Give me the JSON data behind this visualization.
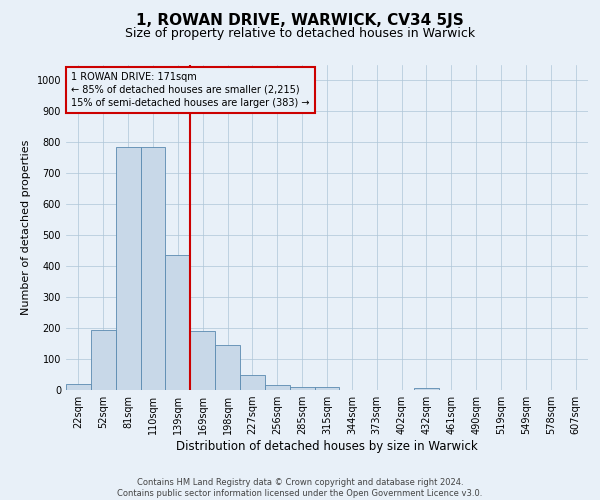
{
  "title": "1, ROWAN DRIVE, WARWICK, CV34 5JS",
  "subtitle": "Size of property relative to detached houses in Warwick",
  "xlabel": "Distribution of detached houses by size in Warwick",
  "ylabel": "Number of detached properties",
  "footer_line1": "Contains HM Land Registry data © Crown copyright and database right 2024.",
  "footer_line2": "Contains public sector information licensed under the Open Government Licence v3.0.",
  "categories": [
    "22sqm",
    "52sqm",
    "81sqm",
    "110sqm",
    "139sqm",
    "169sqm",
    "198sqm",
    "227sqm",
    "256sqm",
    "285sqm",
    "315sqm",
    "344sqm",
    "373sqm",
    "402sqm",
    "432sqm",
    "461sqm",
    "490sqm",
    "519sqm",
    "549sqm",
    "578sqm",
    "607sqm"
  ],
  "bar_heights": [
    20,
    195,
    785,
    785,
    435,
    190,
    145,
    50,
    15,
    10,
    10,
    0,
    0,
    0,
    8,
    0,
    0,
    0,
    0,
    0,
    0
  ],
  "bar_color": "#c8d8e8",
  "bar_edge_color": "#5a8ab0",
  "vline_color": "#cc0000",
  "annotation_box_text": "1 ROWAN DRIVE: 171sqm\n← 85% of detached houses are smaller (2,215)\n15% of semi-detached houses are larger (383) →",
  "annotation_box_color": "#cc0000",
  "ylim": [
    0,
    1050
  ],
  "yticks": [
    0,
    100,
    200,
    300,
    400,
    500,
    600,
    700,
    800,
    900,
    1000
  ],
  "grid_color": "#aec6d8",
  "bg_color": "#e8f0f8",
  "title_fontsize": 11,
  "subtitle_fontsize": 9,
  "ylabel_fontsize": 8,
  "xlabel_fontsize": 8.5,
  "tick_fontsize": 7,
  "footer_fontsize": 6,
  "ann_fontsize": 7
}
